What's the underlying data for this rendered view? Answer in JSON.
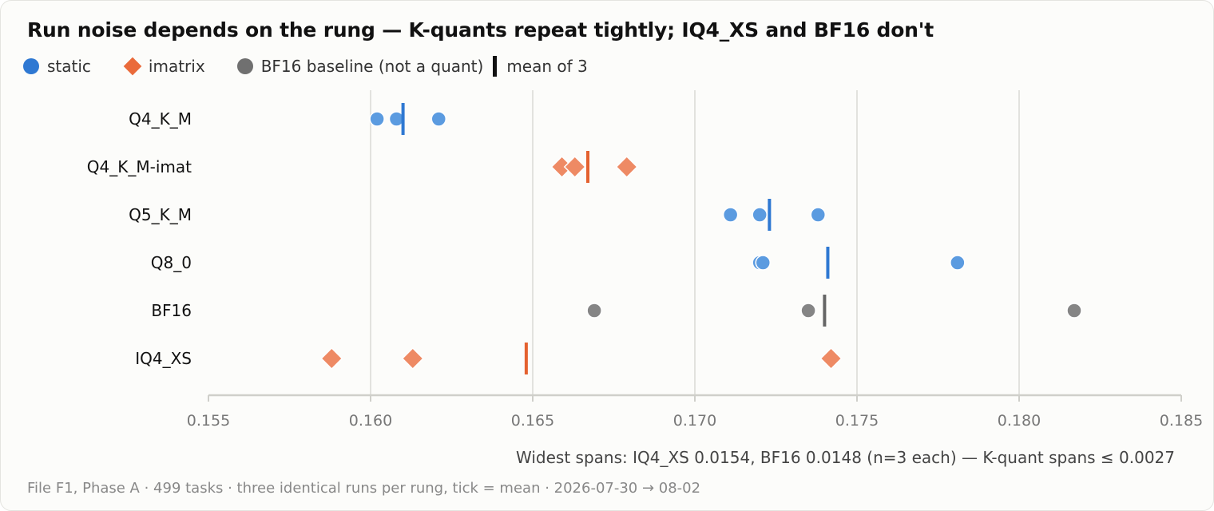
{
  "chart_data": {
    "type": "scatter",
    "title": "Run noise depends on the rung — K-quants repeat tightly; IQ4_XS and BF16 don't",
    "legend": {
      "placement": "top-left",
      "items": [
        {
          "key": "static",
          "label": "static",
          "marker": "circle",
          "color": "#2e78d2"
        },
        {
          "key": "imatrix",
          "label": "imatrix",
          "marker": "diamond",
          "color": "#ea6a3a"
        },
        {
          "key": "bf16",
          "label": "BF16 baseline (not a quant)",
          "marker": "circle",
          "color": "#707070"
        },
        {
          "key": "mean",
          "label": "mean of 3",
          "marker": "tick",
          "color": "#111111"
        }
      ]
    },
    "xlim": [
      0.155,
      0.185
    ],
    "x_ticks": [
      0.155,
      0.16,
      0.165,
      0.17,
      0.175,
      0.18,
      0.185
    ],
    "x_tick_labels": [
      "0.155",
      "0.160",
      "0.165",
      "0.170",
      "0.175",
      "0.180",
      "0.185"
    ],
    "grid": "vertical",
    "series": [
      {
        "name": "Q4_K_M",
        "kind": "static",
        "values": [
          0.1602,
          0.1608,
          0.1621
        ],
        "mean": 0.161
      },
      {
        "name": "Q4_K_M-imat",
        "kind": "imatrix",
        "values": [
          0.1659,
          0.1663,
          0.1679
        ],
        "mean": 0.1667
      },
      {
        "name": "Q5_K_M",
        "kind": "static",
        "values": [
          0.1711,
          0.172,
          0.1738
        ],
        "mean": 0.1723
      },
      {
        "name": "Q8_0",
        "kind": "static",
        "values": [
          0.172,
          0.1721,
          0.1781
        ],
        "mean": 0.1741
      },
      {
        "name": "BF16",
        "kind": "bf16",
        "values": [
          0.1669,
          0.1735,
          0.1817
        ],
        "mean": 0.174
      },
      {
        "name": "IQ4_XS",
        "kind": "imatrix",
        "values": [
          0.1588,
          0.1613,
          0.1742
        ],
        "mean": 0.1648
      }
    ],
    "annotation": "Widest spans: IQ4_XS 0.0154, BF16 0.0148 (n=3 each) — K-quant spans ≤ 0.0027"
  },
  "colors": {
    "static_point": "#5b9be0",
    "static_mean": "#2e78d2",
    "imatrix_point": "#ee8a64",
    "imatrix_mean": "#e4612f",
    "bf16_point": "#858585",
    "bf16_mean": "#666666",
    "grid": "#e2e2de",
    "axis": "#cfcfca"
  },
  "footer": "File F1, Phase A · 499 tasks · three identical runs per rung, tick = mean · 2026-07-30 → 08-02"
}
